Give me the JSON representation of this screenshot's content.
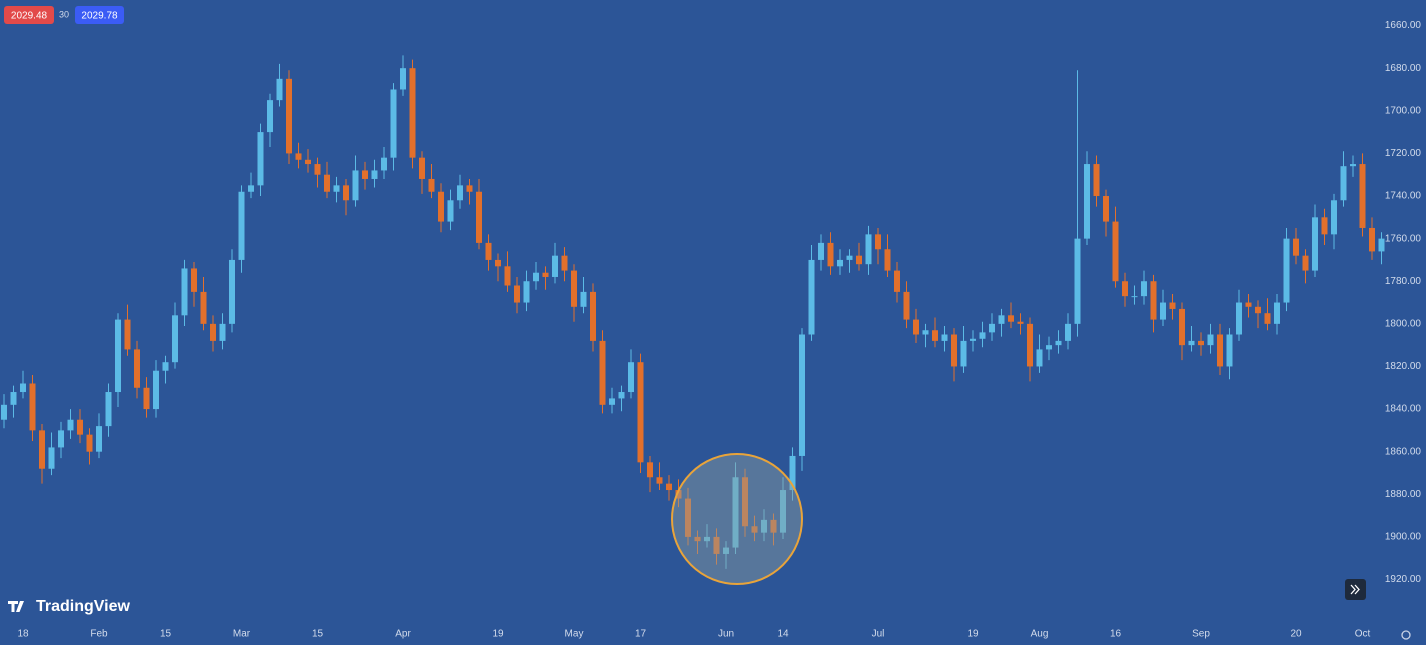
{
  "toolbar": {
    "sell": "2029.48",
    "spread": "30",
    "buy": "2029.78"
  },
  "watermark": "TradingView",
  "chart_data": {
    "type": "candlestick",
    "rising_color": "#e2702c",
    "falling_color": "#5cbbe6",
    "inverted": true,
    "ylim": [
      1648,
      1939
    ],
    "yticks": [
      {
        "value": 1660,
        "label": "1660.00"
      },
      {
        "value": 1680,
        "label": "1680.00"
      },
      {
        "value": 1700,
        "label": "1700.00"
      },
      {
        "value": 1720,
        "label": "1720.00"
      },
      {
        "value": 1740,
        "label": "1740.00"
      },
      {
        "value": 1760,
        "label": "1760.00"
      },
      {
        "value": 1780,
        "label": "1780.00"
      },
      {
        "value": 1800,
        "label": "1800.00"
      },
      {
        "value": 1820,
        "label": "1820.00"
      },
      {
        "value": 1840,
        "label": "1840.00"
      },
      {
        "value": 1860,
        "label": "1860.00"
      },
      {
        "value": 1880,
        "label": "1880.00"
      },
      {
        "value": 1900,
        "label": "1900.00"
      },
      {
        "value": 1920,
        "label": "1920.00"
      }
    ],
    "categories": [
      null,
      null,
      "18",
      null,
      null,
      null,
      null,
      null,
      null,
      null,
      "Feb",
      null,
      null,
      null,
      null,
      null,
      null,
      "15",
      null,
      null,
      null,
      null,
      null,
      null,
      null,
      "Mar",
      null,
      null,
      null,
      null,
      null,
      null,
      null,
      "15",
      null,
      null,
      null,
      null,
      null,
      null,
      null,
      null,
      "Apr",
      null,
      null,
      null,
      null,
      null,
      null,
      null,
      null,
      null,
      "19",
      null,
      null,
      null,
      null,
      null,
      null,
      null,
      "May",
      null,
      null,
      null,
      null,
      null,
      null,
      "17",
      null,
      null,
      null,
      null,
      null,
      null,
      null,
      null,
      "Jun",
      null,
      null,
      null,
      null,
      null,
      "14",
      null,
      null,
      null,
      null,
      null,
      null,
      null,
      null,
      null,
      "Jul",
      null,
      null,
      null,
      null,
      null,
      null,
      null,
      null,
      null,
      "19",
      null,
      null,
      null,
      null,
      null,
      null,
      "Aug",
      null,
      null,
      null,
      null,
      null,
      null,
      null,
      "16",
      null,
      null,
      null,
      null,
      null,
      null,
      null,
      null,
      "Sep",
      null,
      null,
      null,
      null,
      null,
      null,
      null,
      null,
      null,
      "20",
      null,
      null,
      null,
      null,
      null,
      null,
      "Oct",
      null,
      null
    ],
    "open": [
      1845,
      1838,
      1832,
      1828,
      1850,
      1868,
      1858,
      1850,
      1845,
      1852,
      1860,
      1848,
      1832,
      1798,
      1812,
      1830,
      1840,
      1822,
      1818,
      1796,
      1774,
      1785,
      1800,
      1808,
      1800,
      1770,
      1738,
      1735,
      1710,
      1695,
      1685,
      1720,
      1723,
      1725,
      1730,
      1738,
      1735,
      1742,
      1728,
      1732,
      1728,
      1722,
      1690,
      1680,
      1722,
      1732,
      1738,
      1752,
      1742,
      1735,
      1738,
      1762,
      1770,
      1773,
      1782,
      1790,
      1780,
      1776,
      1778,
      1768,
      1775,
      1792,
      1785,
      1808,
      1838,
      1835,
      1832,
      1818,
      1865,
      1872,
      1875,
      1878,
      1882,
      1900,
      1902,
      1900,
      1908,
      1905,
      1872,
      1895,
      1898,
      1892,
      1898,
      1878,
      1862,
      1805,
      1770,
      1762,
      1773,
      1770,
      1768,
      1772,
      1758,
      1765,
      1775,
      1785,
      1798,
      1805,
      1803,
      1808,
      1805,
      1820,
      1808,
      1807,
      1804,
      1800,
      1796,
      1799,
      1800,
      1820,
      1812,
      1810,
      1808,
      1800,
      1760,
      1725,
      1740,
      1752,
      1780,
      1787,
      1787,
      1780,
      1798,
      1790,
      1793,
      1810,
      1808,
      1810,
      1805,
      1820,
      1805,
      1790,
      1792,
      1795,
      1800,
      1790,
      1760,
      1768,
      1775,
      1750,
      1758,
      1742,
      1726,
      1725,
      1755,
      1766
    ],
    "high": [
      1849,
      1844,
      1835,
      1855,
      1875,
      1871,
      1863,
      1854,
      1856,
      1866,
      1863,
      1853,
      1839,
      1815,
      1835,
      1844,
      1844,
      1828,
      1821,
      1801,
      1792,
      1803,
      1813,
      1812,
      1804,
      1776,
      1741,
      1740,
      1717,
      1698,
      1725,
      1727,
      1729,
      1736,
      1741,
      1743,
      1749,
      1745,
      1737,
      1736,
      1732,
      1728,
      1693,
      1727,
      1739,
      1741,
      1757,
      1756,
      1746,
      1744,
      1765,
      1775,
      1780,
      1785,
      1795,
      1794,
      1784,
      1784,
      1781,
      1780,
      1799,
      1795,
      1813,
      1842,
      1842,
      1841,
      1835,
      1870,
      1879,
      1878,
      1883,
      1886,
      1904,
      1908,
      1905,
      1913,
      1915,
      1908,
      1900,
      1902,
      1902,
      1904,
      1901,
      1883,
      1869,
      1808,
      1775,
      1777,
      1777,
      1776,
      1775,
      1777,
      1772,
      1778,
      1790,
      1802,
      1809,
      1811,
      1811,
      1813,
      1827,
      1823,
      1813,
      1811,
      1808,
      1806,
      1802,
      1805,
      1827,
      1823,
      1817,
      1814,
      1812,
      1806,
      1763,
      1745,
      1759,
      1783,
      1792,
      1791,
      1791,
      1804,
      1801,
      1798,
      1817,
      1813,
      1815,
      1814,
      1824,
      1826,
      1808,
      1797,
      1802,
      1803,
      1805,
      1794,
      1772,
      1781,
      1778,
      1763,
      1765,
      1745,
      1731,
      1759,
      1770,
      1772
    ],
    "low": [
      1833,
      1829,
      1822,
      1824,
      1847,
      1851,
      1846,
      1840,
      1840,
      1849,
      1842,
      1828,
      1795,
      1791,
      1808,
      1825,
      1817,
      1815,
      1790,
      1770,
      1771,
      1778,
      1796,
      1795,
      1765,
      1735,
      1729,
      1706,
      1692,
      1678,
      1681,
      1715,
      1718,
      1722,
      1724,
      1731,
      1732,
      1721,
      1724,
      1723,
      1717,
      1687,
      1674,
      1676,
      1719,
      1725,
      1734,
      1737,
      1730,
      1732,
      1732,
      1758,
      1767,
      1766,
      1778,
      1775,
      1771,
      1773,
      1762,
      1764,
      1772,
      1778,
      1781,
      1803,
      1830,
      1829,
      1812,
      1814,
      1862,
      1865,
      1871,
      1873,
      1877,
      1897,
      1894,
      1896,
      1902,
      1865,
      1868,
      1890,
      1887,
      1889,
      1872,
      1858,
      1802,
      1763,
      1758,
      1757,
      1765,
      1765,
      1762,
      1754,
      1755,
      1758,
      1771,
      1780,
      1793,
      1800,
      1797,
      1801,
      1802,
      1801,
      1803,
      1799,
      1795,
      1793,
      1790,
      1795,
      1797,
      1805,
      1806,
      1803,
      1795,
      1681,
      1719,
      1721,
      1737,
      1745,
      1776,
      1782,
      1775,
      1777,
      1784,
      1786,
      1790,
      1801,
      1804,
      1800,
      1800,
      1802,
      1784,
      1786,
      1789,
      1788,
      1786,
      1755,
      1755,
      1765,
      1744,
      1746,
      1739,
      1719,
      1721,
      1720,
      1750,
      1757
    ],
    "close": [
      1838,
      1832,
      1828,
      1850,
      1868,
      1858,
      1850,
      1845,
      1852,
      1860,
      1848,
      1832,
      1798,
      1812,
      1830,
      1840,
      1822,
      1818,
      1796,
      1774,
      1785,
      1800,
      1808,
      1800,
      1770,
      1738,
      1735,
      1710,
      1695,
      1685,
      1720,
      1723,
      1725,
      1730,
      1738,
      1735,
      1742,
      1728,
      1732,
      1728,
      1722,
      1690,
      1680,
      1722,
      1732,
      1738,
      1752,
      1742,
      1735,
      1738,
      1762,
      1770,
      1773,
      1782,
      1790,
      1780,
      1776,
      1778,
      1768,
      1775,
      1792,
      1785,
      1808,
      1838,
      1835,
      1832,
      1818,
      1865,
      1872,
      1875,
      1878,
      1882,
      1900,
      1902,
      1900,
      1908,
      1905,
      1872,
      1895,
      1898,
      1892,
      1898,
      1878,
      1862,
      1805,
      1770,
      1762,
      1773,
      1770,
      1768,
      1772,
      1758,
      1765,
      1775,
      1785,
      1798,
      1805,
      1803,
      1808,
      1805,
      1820,
      1808,
      1807,
      1804,
      1800,
      1796,
      1799,
      1800,
      1820,
      1812,
      1810,
      1808,
      1800,
      1760,
      1725,
      1740,
      1752,
      1780,
      1787,
      1787,
      1780,
      1798,
      1790,
      1793,
      1810,
      1808,
      1810,
      1805,
      1820,
      1805,
      1790,
      1792,
      1795,
      1800,
      1790,
      1760,
      1768,
      1775,
      1750,
      1758,
      1742,
      1726,
      1725,
      1755,
      1766,
      1760
    ]
  }
}
